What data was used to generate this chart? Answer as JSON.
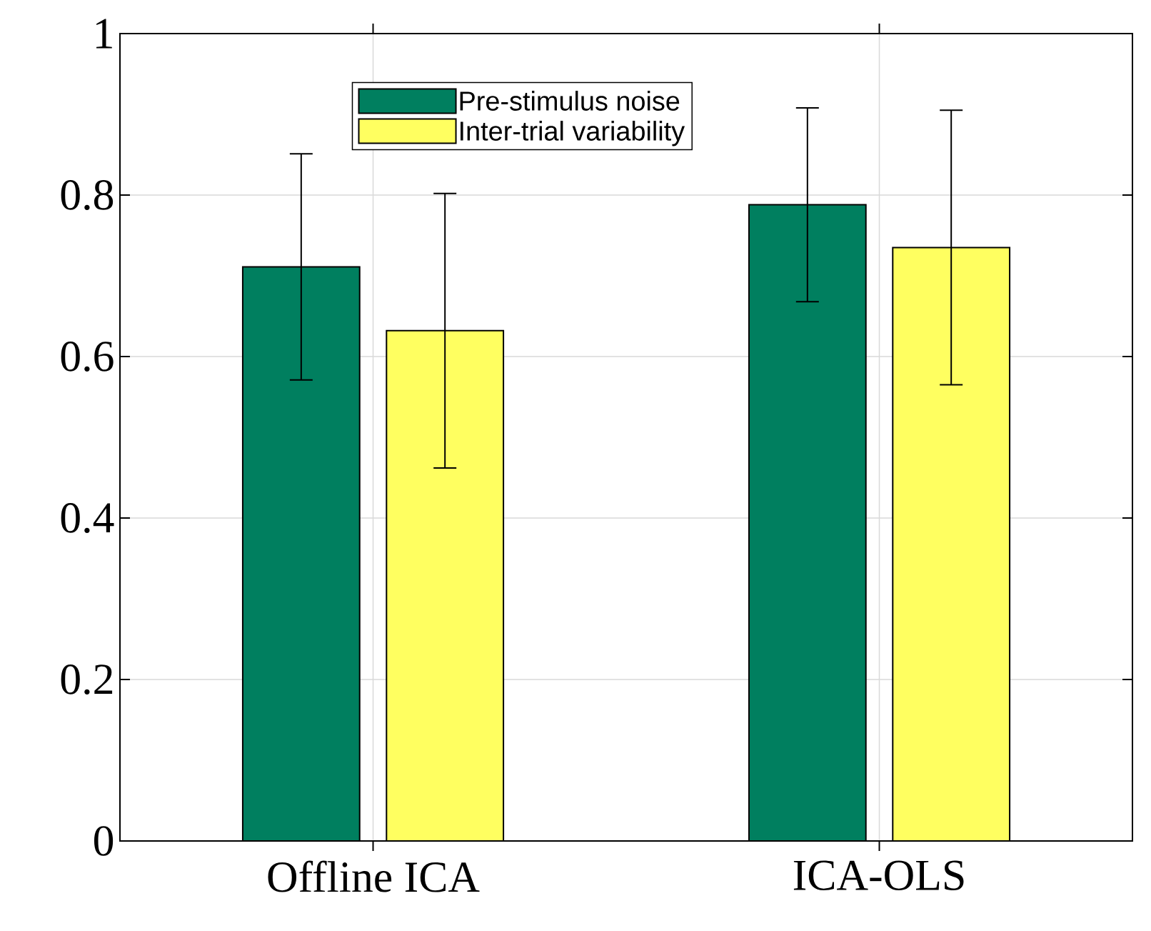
{
  "chart_data": {
    "type": "bar",
    "categories": [
      "Offline ICA",
      "ICA-OLS"
    ],
    "series": [
      {
        "name": "Pre-stimulus noise",
        "color": "#007f5f",
        "values": [
          0.711,
          0.788
        ],
        "errors": [
          0.14,
          0.12
        ]
      },
      {
        "name": "Inter-trial variability",
        "color": "#ffff60",
        "values": [
          0.632,
          0.735
        ],
        "errors": [
          0.17,
          0.17
        ]
      }
    ],
    "ylim": [
      0,
      1
    ],
    "yticks": [
      0,
      0.2,
      0.4,
      0.6,
      0.8,
      1
    ],
    "grid": true,
    "legend": "top"
  }
}
